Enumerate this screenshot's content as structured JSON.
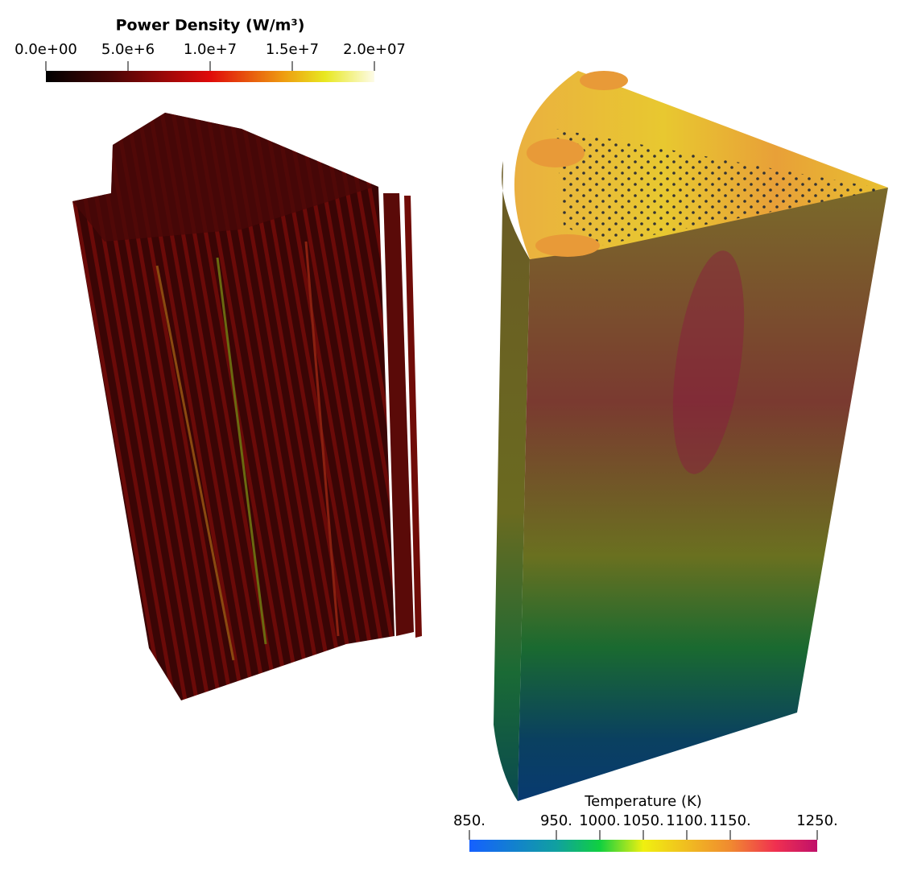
{
  "colorbars": [
    {
      "title": "Power Density (W/m³)",
      "range": [
        0,
        20000000
      ],
      "ticks": [
        {
          "value": 0,
          "label": "0.0e+00"
        },
        {
          "value": 5000000,
          "label": "5.0e+6"
        },
        {
          "value": 10000000,
          "label": "1.0e+7"
        },
        {
          "value": 15000000,
          "label": "1.5e+7"
        },
        {
          "value": 20000000,
          "label": "2.0e+07"
        }
      ]
    },
    {
      "title": "Temperature (K)",
      "range": [
        850,
        1250
      ],
      "ticks": [
        {
          "value": 850,
          "label": "850."
        },
        {
          "value": 950,
          "label": "950."
        },
        {
          "value": 1000,
          "label": "1000."
        },
        {
          "value": 1050,
          "label": "1050."
        },
        {
          "value": 1100,
          "label": "1100."
        },
        {
          "value": 1150,
          "label": "1150."
        },
        {
          "value": 1250,
          "label": "1250."
        }
      ]
    }
  ]
}
